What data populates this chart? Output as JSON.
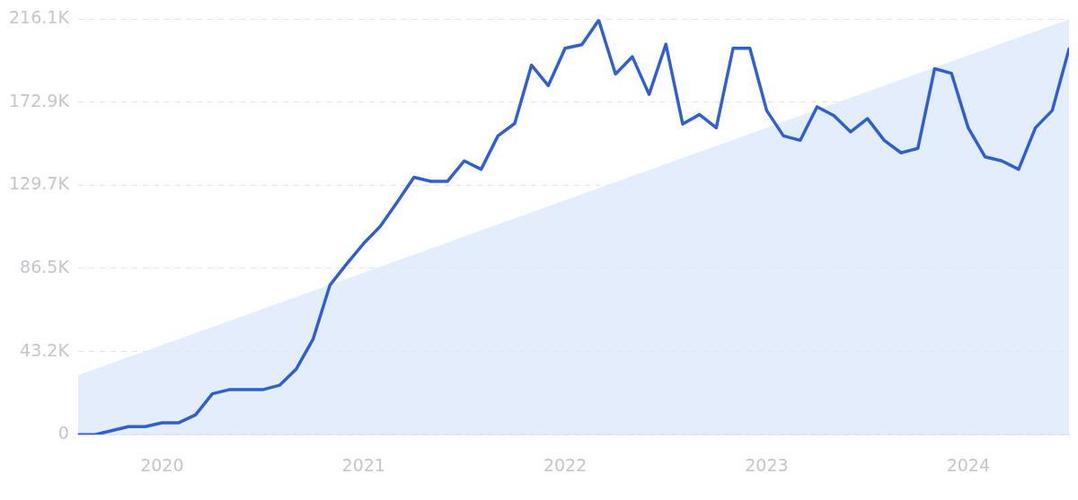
{
  "chart_data": {
    "type": "line",
    "xlim": [
      "2019-08",
      "2024-07"
    ],
    "xticks": [
      {
        "value": "2020-01",
        "label": "2020"
      },
      {
        "value": "2021-01",
        "label": "2021"
      },
      {
        "value": "2022-01",
        "label": "2022"
      },
      {
        "value": "2023-01",
        "label": "2023"
      },
      {
        "value": "2024-01",
        "label": "2024"
      }
    ],
    "ylim": [
      0,
      216.1
    ],
    "yticks": [
      {
        "value": 0,
        "label": "0"
      },
      {
        "value": 43.2,
        "label": "43.2K"
      },
      {
        "value": 86.5,
        "label": "86.5K"
      },
      {
        "value": 129.7,
        "label": "129.7K"
      },
      {
        "value": 172.9,
        "label": "172.9K"
      },
      {
        "value": 216.1,
        "label": "216.1K"
      }
    ],
    "grid": "y",
    "series": [
      {
        "type": "area",
        "color": "#dce9fb",
        "x": [
          "2019-08",
          "2024-07"
        ],
        "values": [
          30.9,
          216.1
        ]
      },
      {
        "type": "line",
        "color": "#2f5fd6",
        "x": [
          "2019-08",
          "2019-09",
          "2019-10",
          "2019-11",
          "2019-12",
          "2020-01",
          "2020-02",
          "2020-03",
          "2020-04",
          "2020-05",
          "2020-06",
          "2020-07",
          "2020-08",
          "2020-09",
          "2020-10",
          "2020-11",
          "2020-12",
          "2021-01",
          "2021-02",
          "2021-03",
          "2021-04",
          "2021-05",
          "2021-06",
          "2021-07",
          "2021-08",
          "2021-09",
          "2021-10",
          "2021-11",
          "2021-12",
          "2022-01",
          "2022-02",
          "2022-03",
          "2022-04",
          "2022-05",
          "2022-06",
          "2022-07",
          "2022-08",
          "2022-09",
          "2022-10",
          "2022-11",
          "2022-12",
          "2023-01",
          "2023-02",
          "2023-03",
          "2023-04",
          "2023-05",
          "2023-06",
          "2023-07",
          "2023-08",
          "2023-09",
          "2023-10",
          "2023-11",
          "2023-12",
          "2024-01",
          "2024-02",
          "2024-03",
          "2024-04",
          "2024-05",
          "2024-06",
          "2024-07"
        ],
        "values": [
          0,
          0,
          2.1,
          4.2,
          4.2,
          6.2,
          6.2,
          10.3,
          21.3,
          23.4,
          23.4,
          23.4,
          25.7,
          34.2,
          49.8,
          77.8,
          88.9,
          99.4,
          108.4,
          120.9,
          133.9,
          131.8,
          131.8,
          142.4,
          138.0,
          155.4,
          161.9,
          192.2,
          181.6,
          201.0,
          202.9,
          215.6,
          187.6,
          196.6,
          177.0,
          203.1,
          161.6,
          166.5,
          159.6,
          201.0,
          201.0,
          168.6,
          155.4,
          153.1,
          170.5,
          166.0,
          157.5,
          164.4,
          153.1,
          146.6,
          148.9,
          190.4,
          188.0,
          159.6,
          144.5,
          142.4,
          138.0,
          159.6,
          168.6,
          200.6
        ]
      }
    ]
  }
}
